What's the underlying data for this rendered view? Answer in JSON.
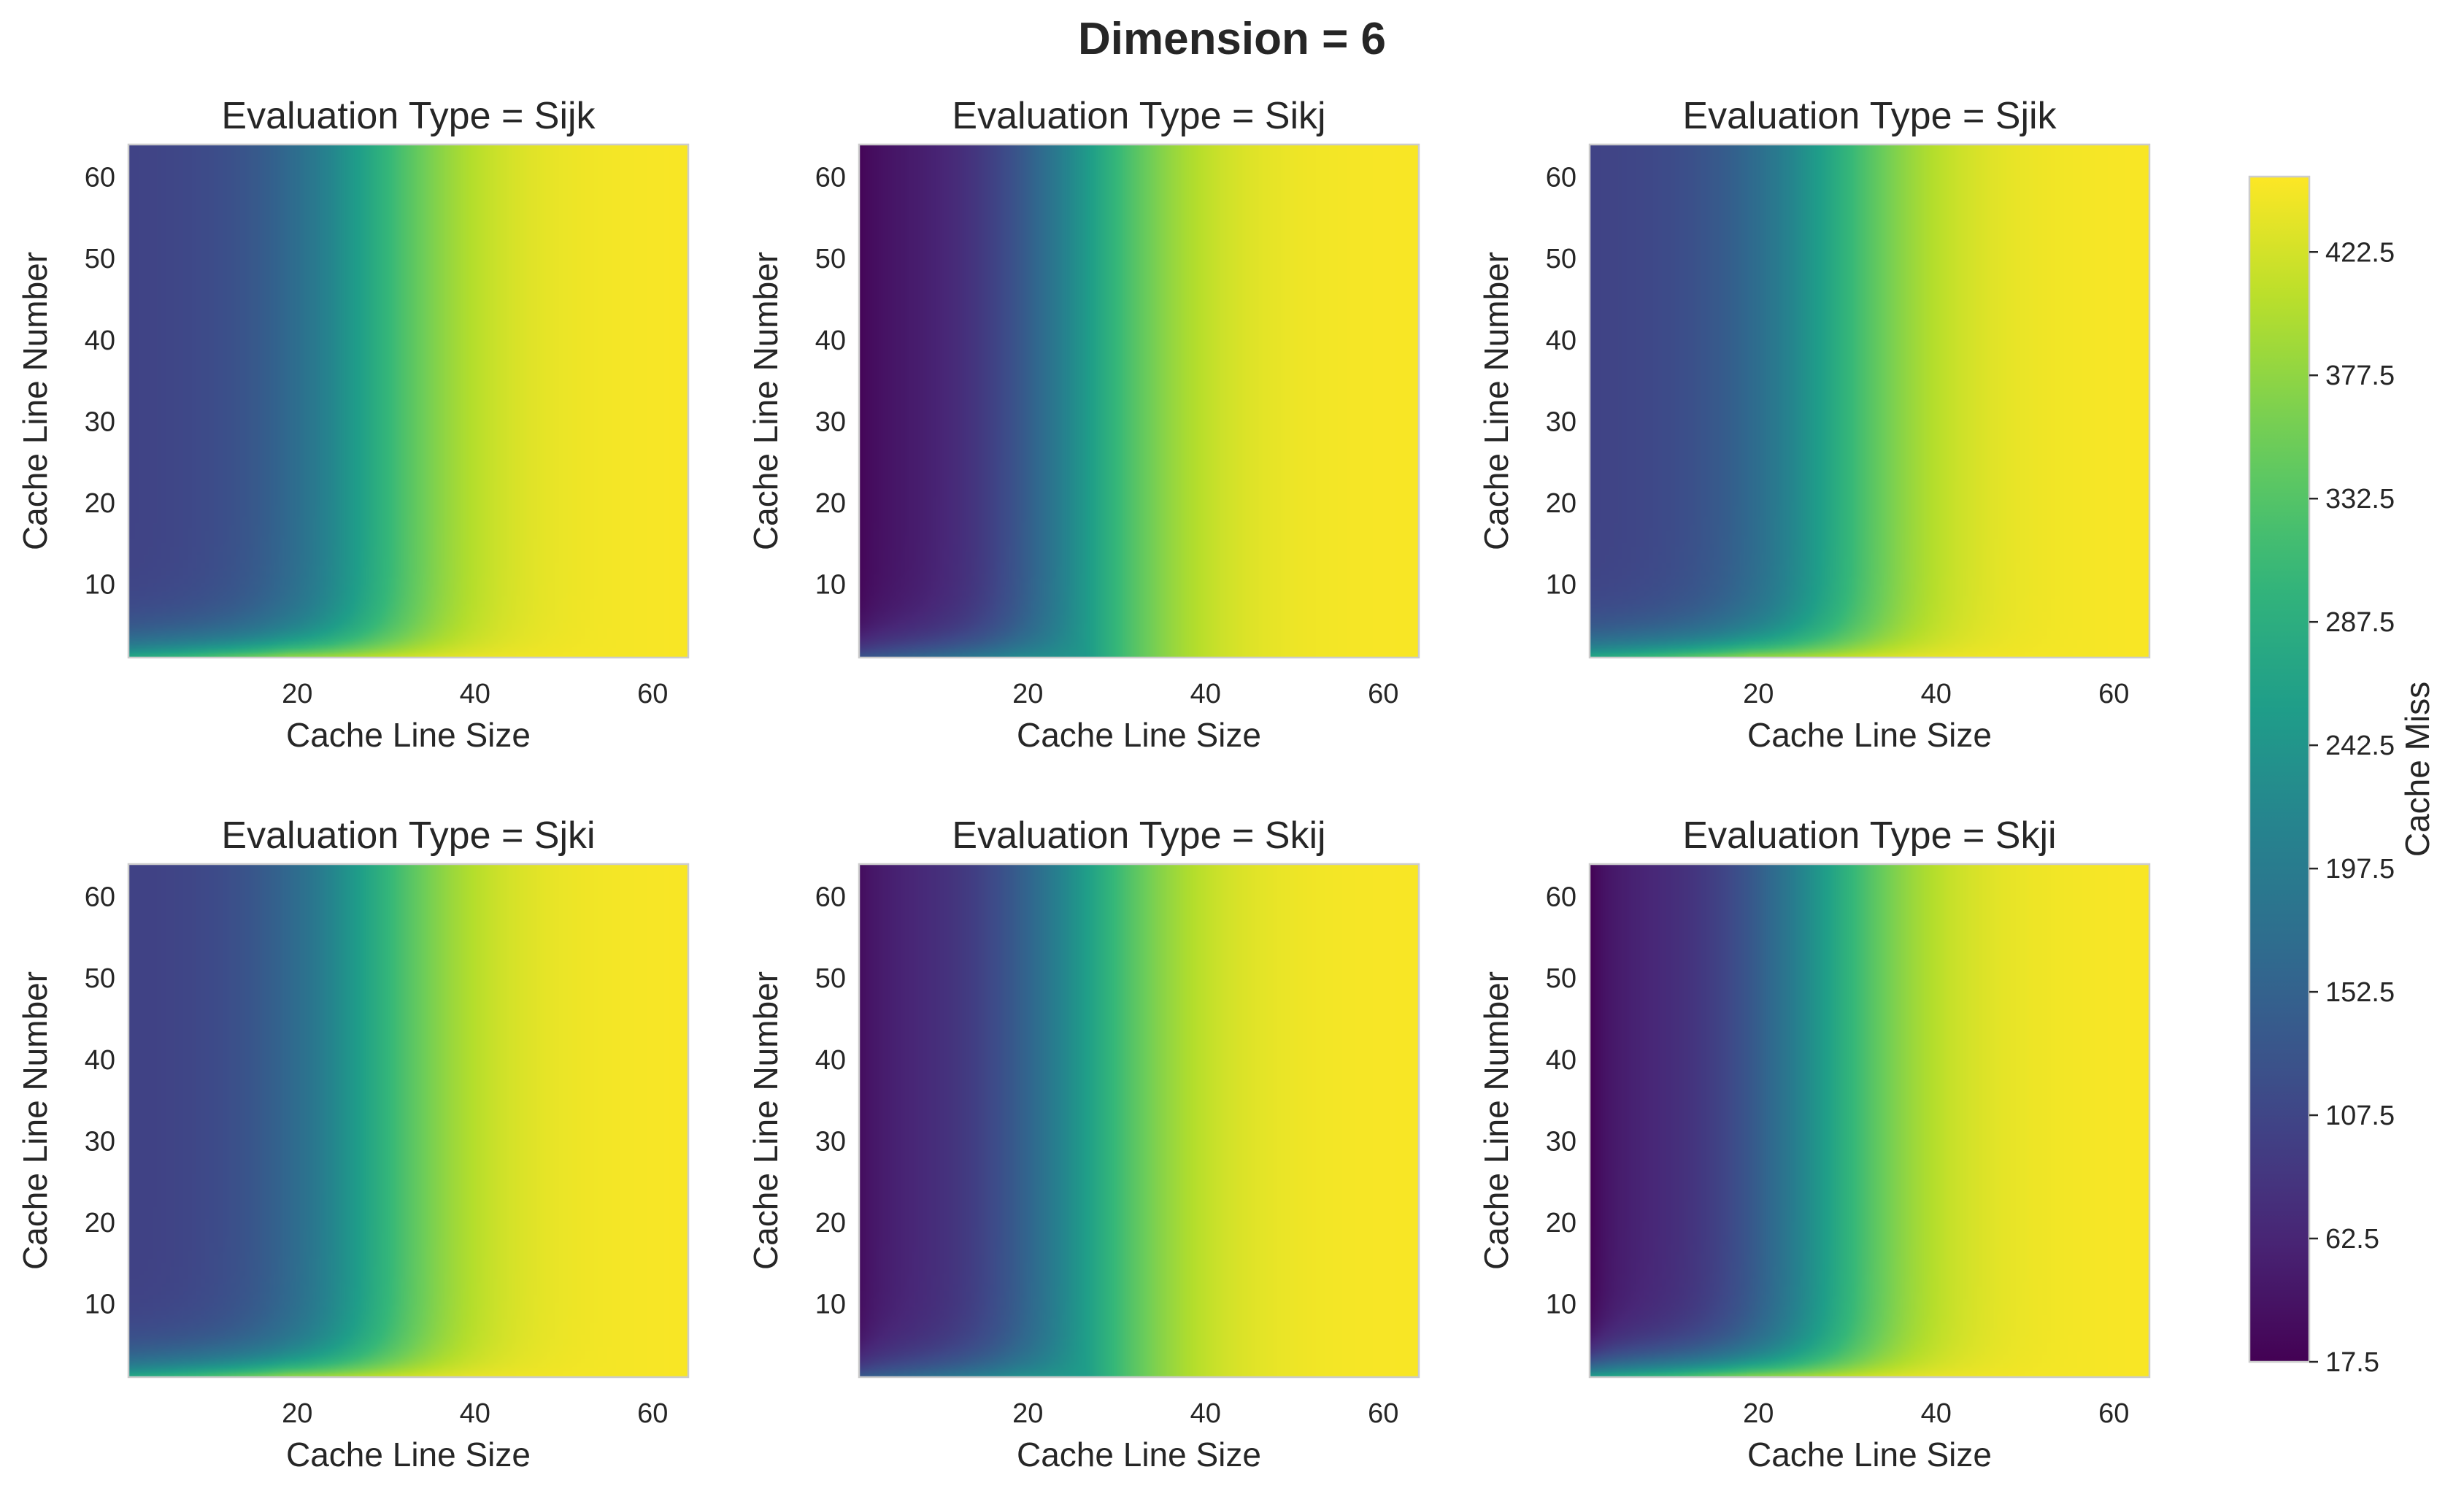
{
  "figure": {
    "suptitle": "Dimension = 6"
  },
  "chart_data": [
    {
      "type": "heatmap",
      "title": "Evaluation Type = Sijk",
      "xlabel": "Cache Line Size",
      "ylabel": "Cache Line Number",
      "xlim": [
        1,
        64
      ],
      "ylim": [
        1,
        64
      ],
      "xticks": [
        20,
        40,
        60
      ],
      "yticks": [
        10,
        20,
        30,
        40,
        50,
        60
      ],
      "profile": {
        "base": 103,
        "mid": 262,
        "end": 447,
        "xMid": 28,
        "left": 104,
        "bottomRow": 445,
        "edge": 330
      }
    },
    {
      "type": "heatmap",
      "title": "Evaluation Type = Sikj",
      "xlabel": "Cache Line Size",
      "ylabel": "Cache Line Number",
      "xlim": [
        1,
        64
      ],
      "ylim": [
        1,
        64
      ],
      "xticks": [
        20,
        40,
        60
      ],
      "yticks": [
        10,
        20,
        30,
        40,
        50,
        60
      ],
      "profile": {
        "base": 40,
        "mid": 258,
        "end": 447,
        "xMid": 26,
        "left": 22,
        "bottomRow": 250,
        "edge": 160
      }
    },
    {
      "type": "heatmap",
      "title": "Evaluation Type = Sjik",
      "xlabel": "Cache Line Size",
      "ylabel": "Cache Line Number",
      "xlim": [
        1,
        64
      ],
      "ylim": [
        1,
        64
      ],
      "xticks": [
        20,
        40,
        60
      ],
      "yticks": [
        10,
        20,
        30,
        40,
        50,
        60
      ],
      "profile": {
        "base": 103,
        "mid": 262,
        "end": 447,
        "xMid": 28,
        "left": 104,
        "bottomRow": 445,
        "edge": 330
      }
    },
    {
      "type": "heatmap",
      "title": "Evaluation Type = Sjki",
      "xlabel": "Cache Line Size",
      "ylabel": "Cache Line Number",
      "xlim": [
        1,
        64
      ],
      "ylim": [
        1,
        64
      ],
      "xticks": [
        20,
        40,
        60
      ],
      "yticks": [
        10,
        20,
        30,
        40,
        50,
        60
      ],
      "profile": {
        "base": 100,
        "mid": 262,
        "end": 447,
        "xMid": 28,
        "left": 102,
        "bottomRow": 445,
        "edge": 330
      }
    },
    {
      "type": "heatmap",
      "title": "Evaluation Type = Skij",
      "xlabel": "Cache Line Size",
      "ylabel": "Cache Line Number",
      "xlim": [
        1,
        64
      ],
      "ylim": [
        1,
        64
      ],
      "xticks": [
        20,
        40,
        60
      ],
      "yticks": [
        10,
        20,
        30,
        40,
        50,
        60
      ],
      "profile": {
        "base": 55,
        "mid": 258,
        "end": 447,
        "xMid": 26,
        "left": 30,
        "bottomRow": 260,
        "edge": 170
      }
    },
    {
      "type": "heatmap",
      "title": "Evaluation Type = Skji",
      "xlabel": "Cache Line Size",
      "ylabel": "Cache Line Number",
      "xlim": [
        1,
        64
      ],
      "ylim": [
        1,
        64
      ],
      "xticks": [
        20,
        40,
        60
      ],
      "yticks": [
        10,
        20,
        30,
        40,
        50,
        60
      ],
      "profile": {
        "base": 55,
        "mid": 260,
        "end": 447,
        "xMid": 27,
        "left": 17.5,
        "bottomRow": 445,
        "edge": 330
      }
    }
  ],
  "colorbar": {
    "label": "Cache Miss",
    "colormap": "viridis",
    "range": [
      17.5,
      450
    ],
    "ticks": [
      17.5,
      62.5,
      107.5,
      152.5,
      197.5,
      242.5,
      287.5,
      332.5,
      377.5,
      422.5
    ],
    "tick_labels": [
      "17.5",
      "62.5",
      "107.5",
      "152.5",
      "197.5",
      "242.5",
      "287.5",
      "332.5",
      "377.5",
      "422.5"
    ]
  }
}
